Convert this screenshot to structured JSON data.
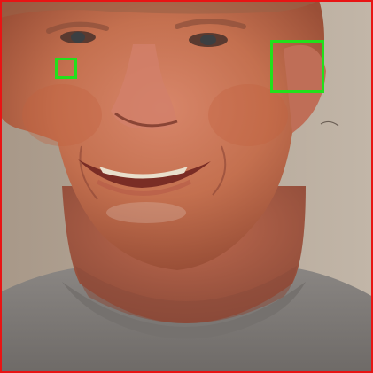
{
  "image": {
    "subject": "face-photo"
  },
  "colors": {
    "frame_border": "#e81414",
    "annotation_box": "#22e01b",
    "background_wall": "#b7a89a",
    "skin": "#c4704f",
    "shirt": "#7f7b78"
  },
  "annotations": [
    {
      "id": "box-1",
      "label": ""
    },
    {
      "id": "box-2",
      "label": ""
    }
  ]
}
